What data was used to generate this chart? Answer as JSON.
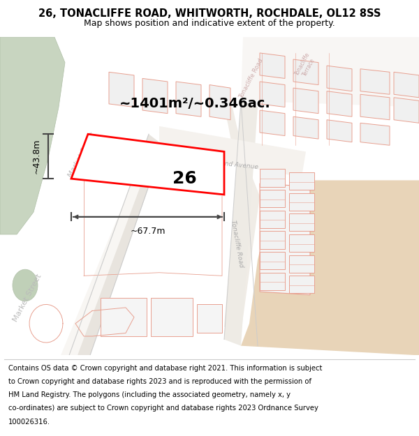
{
  "title": "26, TONACLIFFE ROAD, WHITWORTH, ROCHDALE, OL12 8SS",
  "subtitle": "Map shows position and indicative extent of the property.",
  "footer_lines": [
    "Contains OS data © Crown copyright and database right 2021. This information is subject",
    "to Crown copyright and database rights 2023 and is reproduced with the permission of",
    "HM Land Registry. The polygons (including the associated geometry, namely x, y",
    "co-ordinates) are subject to Crown copyright and database rights 2023 Ordnance Survey",
    "100026316."
  ],
  "area_text": "~1401m²/~0.346ac.",
  "width_text": "~67.7m",
  "height_text": "~43.8m",
  "label_26": "26",
  "title_fontsize": 10.5,
  "subtitle_fontsize": 9,
  "area_fontsize": 14,
  "dim_fontsize": 9,
  "footer_fontsize": 7.2,
  "plot_edge_color": "#ff0000",
  "plot_edge_lw": 2.0,
  "dim_color": "#444444",
  "green_color": "#c8d5c0",
  "road_outline_color": "#cccccc",
  "building_fill": "#f0f0f0",
  "building_edge": "#e8b0a0",
  "road_label_color": "#bbbbbb",
  "tan_color": "#e8d0b0",
  "bg_white": "#ffffff",
  "map_line_color": "#e8a090"
}
